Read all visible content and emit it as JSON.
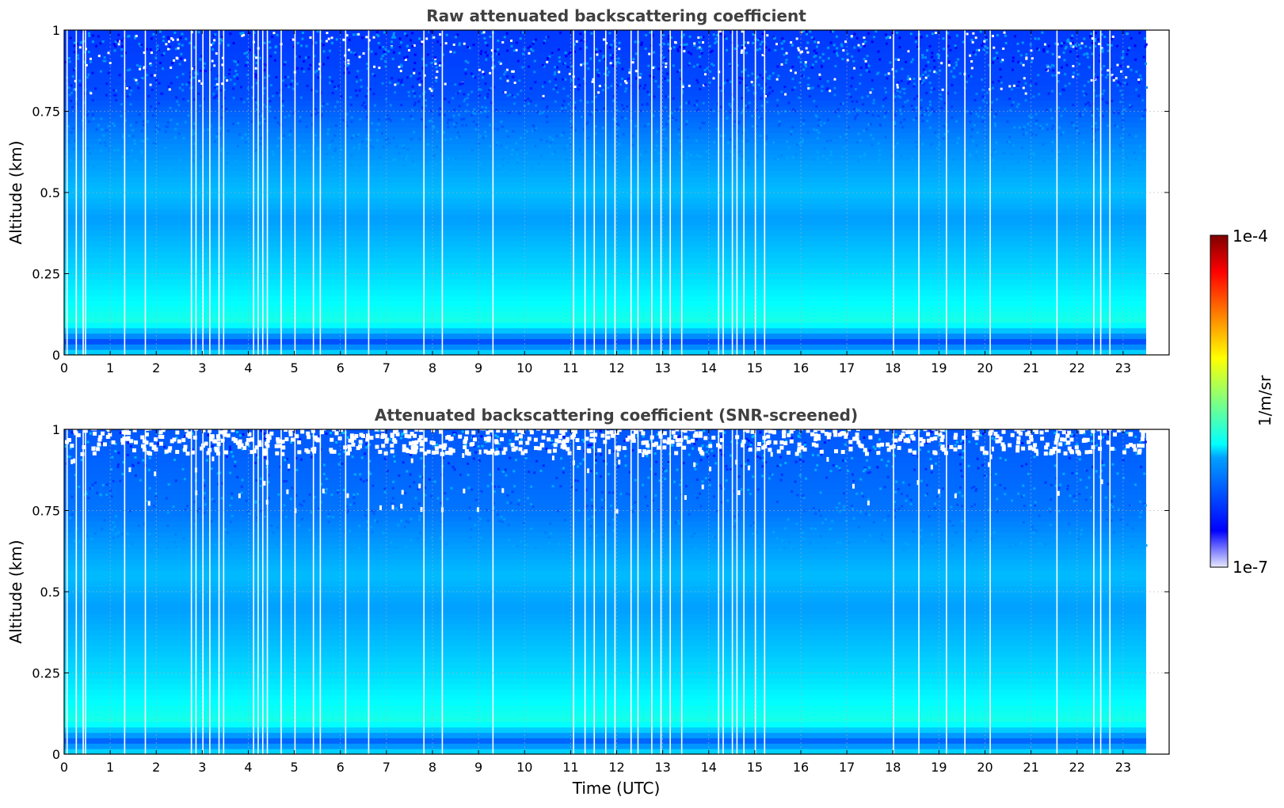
{
  "chart_data": [
    {
      "type": "heatmap",
      "title": "Raw attenuated backscattering coefficient",
      "xlabel": "",
      "ylabel": "Altitude (km)",
      "xlim": [
        0,
        24
      ],
      "ylim": [
        0,
        1
      ],
      "x_ticks": [
        "0",
        "1",
        "2",
        "3",
        "4",
        "5",
        "6",
        "7",
        "8",
        "9",
        "10",
        "11",
        "12",
        "13",
        "14",
        "15",
        "16",
        "17",
        "18",
        "19",
        "20",
        "21",
        "22",
        "23"
      ],
      "y_ticks": [
        "0",
        "0.25",
        "0.5",
        "0.75",
        "1"
      ],
      "data_time_range": [
        0,
        23.5
      ],
      "grid": true,
      "data_gaps_hours": [
        0.05,
        0.25,
        0.4,
        0.45,
        1.3,
        1.75,
        2.75,
        2.85,
        3.0,
        3.15,
        3.35,
        3.45,
        4.1,
        4.2,
        4.3,
        4.4,
        4.7,
        5.0,
        5.4,
        5.55,
        6.1,
        6.6,
        7.8,
        8.2,
        9.3,
        11.05,
        11.3,
        11.5,
        11.75,
        11.95,
        12.3,
        12.45,
        12.75,
        12.95,
        13.15,
        13.4,
        14.2,
        14.3,
        14.5,
        14.6,
        14.75,
        15.0,
        15.2,
        18.0,
        18.55,
        19.15,
        19.55,
        20.1,
        21.55,
        22.35,
        22.5,
        22.7
      ],
      "value_profile": [
        {
          "altitude_km": 0.0,
          "level": 0.36
        },
        {
          "altitude_km": 0.04,
          "level": 0.2
        },
        {
          "altitude_km": 0.1,
          "level": 0.4
        },
        {
          "altitude_km": 0.25,
          "level": 0.34
        },
        {
          "altitude_km": 0.42,
          "level": 0.28
        },
        {
          "altitude_km": 0.5,
          "level": 0.31
        },
        {
          "altitude_km": 0.65,
          "level": 0.26
        },
        {
          "altitude_km": 0.8,
          "level": 0.2
        },
        {
          "altitude_km": 1.0,
          "level": 0.18
        }
      ]
    },
    {
      "type": "heatmap",
      "title": "Attenuated backscattering coefficient (SNR-screened)",
      "xlabel": "Time (UTC)",
      "ylabel": "Altitude (km)",
      "xlim": [
        0,
        24
      ],
      "ylim": [
        0,
        1
      ],
      "x_ticks": [
        "0",
        "1",
        "2",
        "3",
        "4",
        "5",
        "6",
        "7",
        "8",
        "9",
        "10",
        "11",
        "12",
        "13",
        "14",
        "15",
        "16",
        "17",
        "18",
        "19",
        "20",
        "21",
        "22",
        "23"
      ],
      "y_ticks": [
        "0",
        "0.25",
        "0.5",
        "0.75",
        "1"
      ],
      "data_time_range": [
        0,
        23.5
      ],
      "grid": true,
      "screened_above_km": 0.92,
      "value_profile": [
        {
          "altitude_km": 0.0,
          "level": 0.36
        },
        {
          "altitude_km": 0.04,
          "level": 0.22
        },
        {
          "altitude_km": 0.1,
          "level": 0.4
        },
        {
          "altitude_km": 0.25,
          "level": 0.34
        },
        {
          "altitude_km": 0.45,
          "level": 0.28
        },
        {
          "altitude_km": 0.55,
          "level": 0.31
        },
        {
          "altitude_km": 0.75,
          "level": 0.24
        },
        {
          "altitude_km": 1.0,
          "level": 0.21
        }
      ]
    }
  ],
  "colorbar": {
    "label": "1/m/sr",
    "max_label": "1e-4",
    "min_label": "1e-7",
    "colormap": "jet-with-white-low"
  }
}
